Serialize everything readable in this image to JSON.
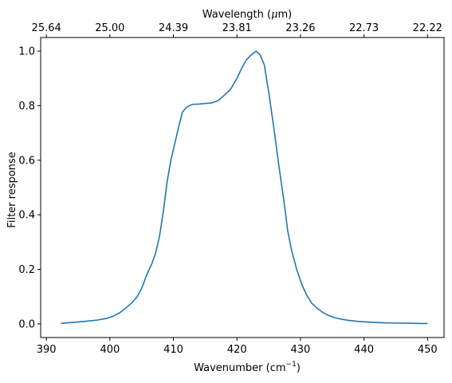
{
  "chart_data": {
    "type": "line",
    "x_label_main": "Wavenumber (cm",
    "x_label_sup": "−1",
    "x_label_end": ")",
    "y_label": "Filter response",
    "top_label_prefix": "Wavelength (",
    "top_label_mu": "μ",
    "top_label_suffix": "m)",
    "xlim": [
      389.1,
      452.6
    ],
    "ylim": [
      -0.05,
      1.05
    ],
    "x_ticks": [
      390,
      400,
      410,
      420,
      430,
      440,
      450
    ],
    "x_tick_labels": [
      "390",
      "400",
      "410",
      "420",
      "430",
      "440",
      "450"
    ],
    "y_ticks": [
      0.0,
      0.2,
      0.4,
      0.6,
      0.8,
      1.0
    ],
    "y_tick_labels": [
      "0.0",
      "0.2",
      "0.4",
      "0.6",
      "0.8",
      "1.0"
    ],
    "top_ticks": [
      390,
      400,
      410,
      420,
      430,
      440,
      450
    ],
    "top_tick_labels": [
      "25.64",
      "25.00",
      "24.39",
      "23.81",
      "23.26",
      "22.73",
      "22.22"
    ],
    "grid": false,
    "series": [
      {
        "color": "#1f77b4",
        "x": [
          392.3,
          394,
          396,
          398,
          399.5,
          400.5,
          401.5,
          402.5,
          403.5,
          404.3,
          405,
          405.8,
          406.6,
          407.2,
          407.8,
          408.4,
          409,
          409.6,
          410.2,
          410.8,
          411.4,
          412,
          412.5,
          413,
          414,
          415,
          416,
          417,
          418,
          419,
          420,
          420.8,
          421.5,
          422.2,
          423,
          423.6,
          424.3,
          425,
          425.8,
          426.6,
          427.4,
          428,
          428.6,
          429.4,
          430.2,
          431,
          431.8,
          432.6,
          433.5,
          434.5,
          435.5,
          436.5,
          437.5,
          439,
          441,
          443,
          445,
          447,
          449,
          450
        ],
        "y": [
          0.002,
          0.005,
          0.009,
          0.014,
          0.02,
          0.028,
          0.04,
          0.058,
          0.078,
          0.1,
          0.13,
          0.18,
          0.22,
          0.26,
          0.32,
          0.41,
          0.52,
          0.6,
          0.66,
          0.72,
          0.775,
          0.793,
          0.8,
          0.805,
          0.806,
          0.808,
          0.81,
          0.818,
          0.838,
          0.86,
          0.9,
          0.94,
          0.968,
          0.985,
          1.0,
          0.988,
          0.95,
          0.85,
          0.72,
          0.58,
          0.45,
          0.34,
          0.27,
          0.2,
          0.145,
          0.105,
          0.075,
          0.058,
          0.042,
          0.03,
          0.022,
          0.017,
          0.013,
          0.009,
          0.006,
          0.004,
          0.003,
          0.0025,
          0.0015,
          0.0015
        ]
      }
    ]
  }
}
